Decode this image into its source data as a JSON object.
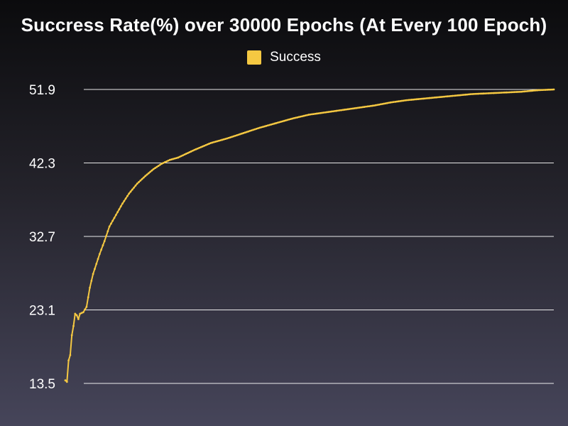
{
  "colors": {
    "series": "#f5c842",
    "grid": "#ffffff",
    "text": "#ffffff"
  },
  "chart_data": {
    "type": "line",
    "title": "Succress Rate(%) over 30000 Epochs (At Every 100 Epoch)",
    "xlabel": "",
    "ylabel": "",
    "ylim": [
      13.5,
      51.9
    ],
    "yticks": [
      "13.5",
      "23.1",
      "32.7",
      "42.3",
      "51.9"
    ],
    "grid": "horizontal",
    "legend_position": "top-center",
    "x": {
      "start": 100,
      "step": 100,
      "count": 300,
      "unit": "epoch"
    },
    "series": [
      {
        "name": "Success",
        "anchors": [
          [
            100,
            13.9
          ],
          [
            200,
            13.7
          ],
          [
            300,
            16.5
          ],
          [
            400,
            17.2
          ],
          [
            500,
            19.8
          ],
          [
            600,
            21.0
          ],
          [
            700,
            22.6
          ],
          [
            800,
            22.4
          ],
          [
            900,
            21.9
          ],
          [
            1000,
            22.6
          ],
          [
            1200,
            22.8
          ],
          [
            1400,
            23.5
          ],
          [
            1600,
            26.0
          ],
          [
            1800,
            27.8
          ],
          [
            2000,
            29.1
          ],
          [
            2200,
            30.4
          ],
          [
            2500,
            32.1
          ],
          [
            2800,
            34.0
          ],
          [
            3200,
            35.5
          ],
          [
            3600,
            37.0
          ],
          [
            4000,
            38.3
          ],
          [
            4500,
            39.6
          ],
          [
            5000,
            40.6
          ],
          [
            5500,
            41.5
          ],
          [
            6000,
            42.2
          ],
          [
            6500,
            42.7
          ],
          [
            7000,
            43.0
          ],
          [
            8000,
            44.0
          ],
          [
            9000,
            44.9
          ],
          [
            10000,
            45.5
          ],
          [
            11000,
            46.2
          ],
          [
            12000,
            46.9
          ],
          [
            13000,
            47.5
          ],
          [
            14000,
            48.1
          ],
          [
            15000,
            48.6
          ],
          [
            16000,
            48.9
          ],
          [
            17000,
            49.2
          ],
          [
            18000,
            49.5
          ],
          [
            19000,
            49.8
          ],
          [
            20000,
            50.2
          ],
          [
            21000,
            50.5
          ],
          [
            22000,
            50.7
          ],
          [
            23000,
            50.9
          ],
          [
            24000,
            51.1
          ],
          [
            25000,
            51.3
          ],
          [
            26000,
            51.4
          ],
          [
            27000,
            51.5
          ],
          [
            28000,
            51.6
          ],
          [
            29000,
            51.8
          ],
          [
            30000,
            51.9
          ]
        ]
      }
    ]
  }
}
